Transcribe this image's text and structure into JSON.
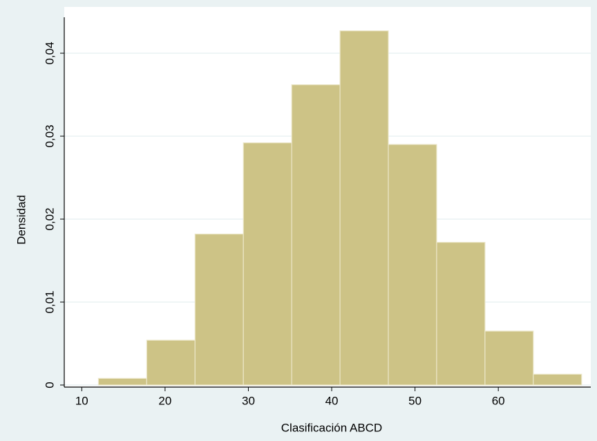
{
  "chart_data": {
    "type": "histogram",
    "x_label": "Clasificación ABCD",
    "y_label": "Densidad",
    "bins": [
      12,
      17.8,
      23.6,
      29.4,
      35.2,
      41,
      46.8,
      52.6,
      58.4,
      64.2,
      70
    ],
    "values": [
      0.0008,
      0.0054,
      0.0182,
      0.0292,
      0.0362,
      0.0427,
      0.029,
      0.0172,
      0.0065,
      0.0013
    ],
    "color": "#cdc386",
    "edgecolor": "#ebe6c8",
    "xlim": [
      7.9,
      71.1
    ],
    "xticks": [
      10,
      20,
      30,
      40,
      50,
      60
    ],
    "ylim": [
      -0.00025,
      0.044
    ],
    "yticks": [
      0,
      {
        "value": 0.01,
        "label": "0,01"
      },
      {
        "value": 0.02,
        "label": "0,02"
      },
      {
        "value": 0.03,
        "label": "0,03"
      },
      {
        "value": 0.04,
        "label": "0,04"
      }
    ],
    "grid": true
  }
}
